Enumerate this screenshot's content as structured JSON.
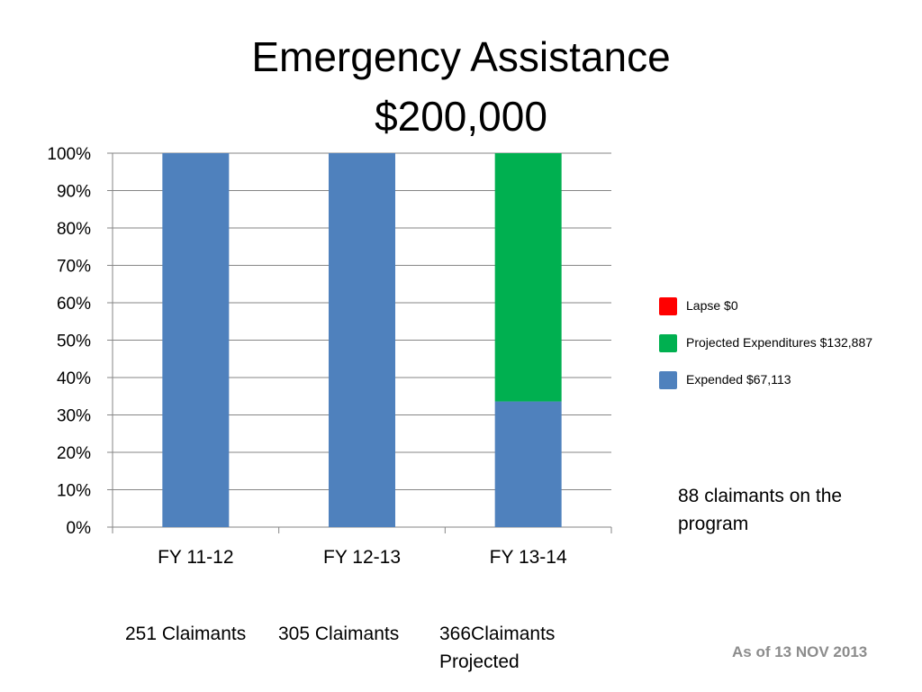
{
  "title": {
    "line1": "Emergency Assistance",
    "line2": "$200,000"
  },
  "chart_data": {
    "type": "bar",
    "stacked": true,
    "percent_stacked": true,
    "categories": [
      "FY 11-12",
      "FY 12-13",
      "FY 13-14"
    ],
    "ylim": [
      0,
      100
    ],
    "yticks": [
      "0%",
      "10%",
      "20%",
      "30%",
      "40%",
      "50%",
      "60%",
      "70%",
      "80%",
      "90%",
      "100%"
    ],
    "grid": true,
    "legend_position": "right",
    "series": [
      {
        "name": "Expended $67,113",
        "color": "#4f81bd",
        "values": [
          100,
          100,
          33.6
        ]
      },
      {
        "name": "Projected Expenditures $132,887",
        "color": "#00b050",
        "values": [
          0,
          0,
          66.4
        ]
      },
      {
        "name": "Lapse $0",
        "color": "#ff0000",
        "values": [
          0,
          0,
          0
        ]
      }
    ]
  },
  "legend": [
    {
      "label": "Lapse $0",
      "color": "#ff0000"
    },
    {
      "label": "Projected Expenditures $132,887",
      "color": "#00b050"
    },
    {
      "label": "Expended $67,113",
      "color": "#4f81bd"
    }
  ],
  "note": "88 claimants on the program",
  "claimants": [
    "251 Claimants",
    "305 Claimants",
    "366Claimants Projected"
  ],
  "as_of": "As of 13 NOV 2013"
}
